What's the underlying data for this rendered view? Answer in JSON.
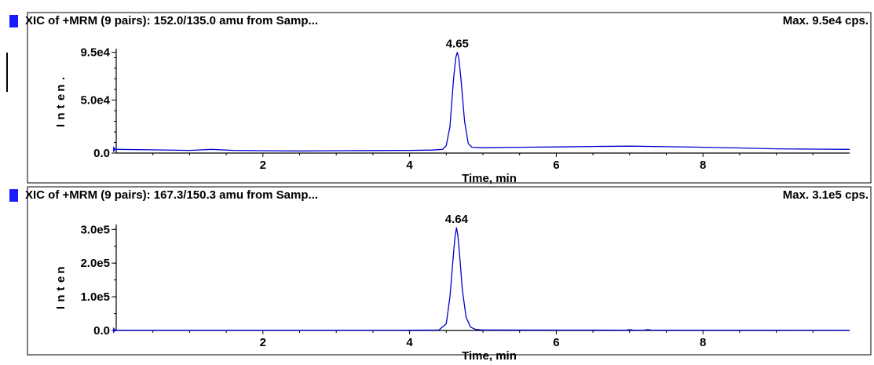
{
  "colors": {
    "trace": "#0000cc",
    "marker": "#1a1aff",
    "axis": "#000000",
    "frame": "#000000"
  },
  "icons": {
    "panel_marker": "blue-square",
    "axis_arrow": "blue-triangle"
  },
  "chart_data": [
    {
      "type": "line",
      "title": "XIC of +MRM (9 pairs): 152.0/135.0 amu from Samp...",
      "max_label": "Max. 9.5e4 cps.",
      "xlabel": "Time, min",
      "ylabel": "Intensity",
      "ylabel_visible_fragments": [
        "I",
        "n",
        "t",
        "e",
        "n",
        "."
      ],
      "xlim": [
        0.0,
        10.0
      ],
      "ylim": [
        0,
        97000
      ],
      "x_ticks": [
        2,
        4,
        6,
        8
      ],
      "x_tick_labels": [
        "2",
        "4",
        "6",
        "8"
      ],
      "y_ticks": [
        0,
        50000,
        95000
      ],
      "y_tick_labels": [
        "0.0",
        "5.0e4",
        "9.5e4"
      ],
      "peak": {
        "x": 4.65,
        "y": 95000,
        "label": "4.65"
      },
      "series": [
        {
          "x": [
            0.0,
            0.5,
            1.0,
            1.3,
            1.6,
            2.0,
            2.5,
            3.0,
            3.5,
            4.0,
            4.3,
            4.45,
            4.5,
            4.55,
            4.6,
            4.63,
            4.65,
            4.67,
            4.7,
            4.75,
            4.8,
            4.85,
            5.0,
            5.5,
            6.0,
            6.5,
            7.0,
            7.5,
            8.0,
            8.5,
            9.0,
            9.5,
            10.0
          ],
          "y": [
            3500,
            3000,
            2500,
            3500,
            2500,
            2200,
            2000,
            2200,
            2400,
            2500,
            2800,
            3500,
            7000,
            25000,
            70000,
            90000,
            95000,
            90000,
            70000,
            30000,
            9000,
            5500,
            5000,
            5500,
            5800,
            6200,
            6500,
            6000,
            5500,
            4800,
            4000,
            3700,
            3500
          ]
        }
      ]
    },
    {
      "type": "line",
      "title": "XIC of +MRM (9 pairs): 167.3/150.3 amu from Samp...",
      "max_label": "Max. 3.1e5 cps.",
      "xlabel": "Time, min",
      "ylabel": "Intensity",
      "ylabel_visible_fragments": [
        "I",
        "n",
        "t",
        "e",
        "n"
      ],
      "xlim": [
        0.0,
        10.0
      ],
      "ylim": [
        0,
        310000
      ],
      "x_ticks": [
        2,
        4,
        6,
        8
      ],
      "x_tick_labels": [
        "2",
        "4",
        "6",
        "8"
      ],
      "y_ticks": [
        0,
        100000,
        200000,
        300000
      ],
      "y_tick_labels": [
        "0.0",
        "1.0e5",
        "2.0e5",
        "3.0e5"
      ],
      "peak": {
        "x": 4.64,
        "y": 305000,
        "label": "4.64"
      },
      "series": [
        {
          "x": [
            0.0,
            1.0,
            2.0,
            3.0,
            4.0,
            4.4,
            4.5,
            4.55,
            4.6,
            4.62,
            4.64,
            4.66,
            4.68,
            4.72,
            4.77,
            4.83,
            4.9,
            5.0,
            6.0,
            6.5,
            6.95,
            7.0,
            7.05,
            7.2,
            7.25,
            7.3,
            8.0,
            9.0,
            10.0
          ],
          "y": [
            500,
            500,
            500,
            500,
            600,
            1500,
            20000,
            100000,
            230000,
            280000,
            305000,
            280000,
            230000,
            120000,
            40000,
            10000,
            3000,
            1500,
            1200,
            1200,
            800,
            2500,
            800,
            1200,
            2500,
            900,
            700,
            600,
            500
          ]
        }
      ]
    }
  ]
}
